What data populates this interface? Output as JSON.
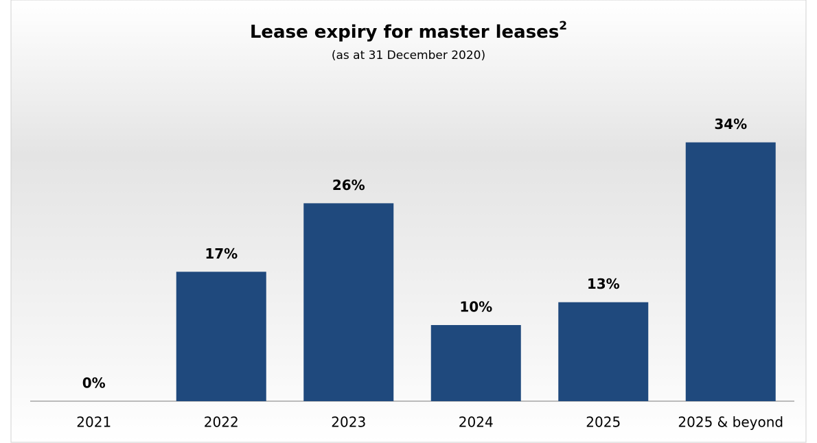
{
  "chart_data": {
    "type": "bar",
    "title": "Lease expiry for master leases",
    "title_superscript": "2",
    "subtitle": "(as at 31 December 2020)",
    "categories": [
      "2021",
      "2022",
      "2023",
      "2024",
      "2025",
      "2025 & beyond"
    ],
    "values": [
      0,
      17,
      26,
      10,
      13,
      34
    ],
    "value_labels": [
      "0%",
      "17%",
      "26%",
      "10%",
      "13%",
      "34%"
    ],
    "color": "#1f497d",
    "ylim": [
      0,
      40
    ]
  }
}
